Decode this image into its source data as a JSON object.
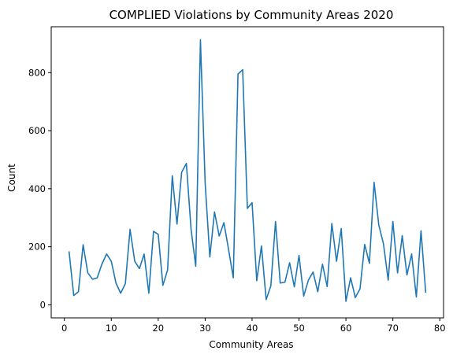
{
  "chart_data": {
    "type": "line",
    "title": "COMPLIED Violations by Community Areas 2020",
    "xlabel": "Community Areas",
    "ylabel": "Count",
    "xlim": [
      -2.8,
      80.8
    ],
    "ylim": [
      -45,
      958
    ],
    "xticks": [
      0,
      10,
      20,
      30,
      40,
      50,
      60,
      70,
      80
    ],
    "yticks": [
      0,
      200,
      400,
      600,
      800
    ],
    "grid": false,
    "line_color": "#1f77b4",
    "series": [
      {
        "x": [
          1,
          2,
          3,
          4,
          5,
          6,
          7,
          8,
          9,
          10,
          11,
          12,
          13,
          14,
          15,
          16,
          17,
          18,
          19,
          20,
          21,
          22,
          23,
          24,
          25,
          26,
          27,
          28,
          29,
          30,
          31,
          32,
          33,
          34,
          35,
          36,
          37,
          38,
          39,
          40,
          41,
          42,
          43,
          44,
          45,
          46,
          47,
          48,
          49,
          50,
          51,
          52,
          53,
          54,
          55,
          56,
          57,
          58,
          59,
          60,
          61,
          62,
          63,
          64,
          65,
          66,
          67,
          68,
          69,
          70,
          71,
          72,
          73,
          74,
          75,
          76,
          77
        ],
        "values": [
          184,
          32,
          45,
          207,
          110,
          88,
          93,
          140,
          175,
          150,
          75,
          40,
          73,
          260,
          150,
          125,
          175,
          40,
          253,
          243,
          67,
          120,
          445,
          278,
          457,
          487,
          260,
          133,
          913,
          420,
          165,
          320,
          237,
          283,
          190,
          93,
          795,
          810,
          332,
          352,
          83,
          203,
          18,
          65,
          287,
          75,
          78,
          145,
          62,
          170,
          30,
          85,
          113,
          45,
          140,
          63,
          280,
          150,
          263,
          12,
          93,
          25,
          55,
          208,
          143,
          422,
          275,
          210,
          85,
          287,
          110,
          238,
          103,
          175,
          27,
          255,
          42
        ]
      }
    ]
  }
}
